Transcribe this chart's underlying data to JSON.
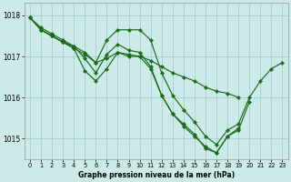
{
  "background_color": "#cceae7",
  "grid_color": "#aad4d0",
  "line_color": "#1a6b1a",
  "title": "Graphe pression niveau de la mer (hPa)",
  "ylim": [
    1014.5,
    1018.3
  ],
  "xlim": [
    -0.5,
    23.5
  ],
  "yticks": [
    1015,
    1016,
    1017,
    1018
  ],
  "xticks": [
    0,
    1,
    2,
    3,
    4,
    5,
    6,
    7,
    8,
    9,
    10,
    11,
    12,
    13,
    14,
    15,
    16,
    17,
    18,
    19,
    20,
    21,
    22,
    23
  ],
  "series": [
    {
      "x": [
        0,
        1,
        2,
        3,
        4,
        5,
        6,
        7,
        8,
        9,
        10,
        11,
        12,
        13,
        14,
        15,
        16,
        17,
        18,
        19,
        20,
        21,
        22,
        23
      ],
      "y": [
        1017.95,
        1017.7,
        1017.55,
        1017.4,
        1017.25,
        1017.1,
        1016.85,
        1017.4,
        1017.65,
        1017.65,
        1017.65,
        1017.4,
        1016.6,
        1016.05,
        1015.7,
        1015.4,
        1015.05,
        1014.85,
        1015.2,
        1015.35,
        1016.0,
        1016.4,
        1016.7,
        1016.85
      ]
    },
    {
      "x": [
        0,
        1,
        2,
        3,
        4,
        5,
        6,
        7,
        8,
        9,
        10,
        11,
        12,
        13,
        14,
        15,
        16,
        17,
        18,
        19,
        20
      ],
      "y": [
        1017.95,
        1017.65,
        1017.5,
        1017.35,
        1017.25,
        1016.95,
        1016.6,
        1017.05,
        1017.3,
        1017.15,
        1017.1,
        1016.75,
        1016.05,
        1015.6,
        1015.35,
        1015.1,
        1014.75,
        1014.65,
        1015.05,
        1015.2,
        1015.9
      ]
    },
    {
      "x": [
        0,
        1,
        2,
        3,
        4,
        5,
        6,
        7,
        8,
        9,
        10,
        11,
        12,
        13,
        14,
        15,
        16,
        17,
        18,
        19
      ],
      "y": [
        1017.95,
        1017.65,
        1017.5,
        1017.35,
        1017.2,
        1016.65,
        1016.4,
        1016.7,
        1017.1,
        1017.0,
        1017.0,
        1016.7,
        1016.05,
        1015.6,
        1015.3,
        1015.05,
        1014.8,
        1014.65,
        1015.05,
        1015.25
      ]
    },
    {
      "x": [
        0,
        1,
        2,
        3,
        4,
        5,
        6,
        7,
        8,
        9,
        10,
        11,
        12,
        13,
        14,
        15,
        16,
        17,
        18,
        19
      ],
      "y": [
        1017.95,
        1017.65,
        1017.5,
        1017.35,
        1017.2,
        1017.05,
        1016.85,
        1016.95,
        1017.1,
        1017.05,
        1017.0,
        1016.9,
        1016.75,
        1016.6,
        1016.5,
        1016.4,
        1016.25,
        1016.15,
        1016.1,
        1016.0
      ]
    }
  ]
}
